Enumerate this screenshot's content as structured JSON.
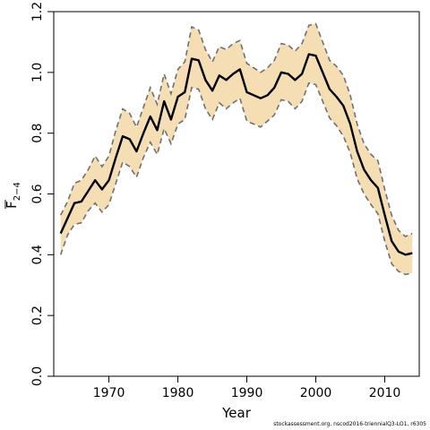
{
  "chart_data": {
    "type": "line",
    "xlabel": "Year",
    "ylabel_base": "F",
    "ylabel_sub": "2−4",
    "xlim": [
      1962,
      2015
    ],
    "ylim": [
      0,
      1.2
    ],
    "xticks": [
      1970,
      1980,
      1990,
      2000,
      2010
    ],
    "yticks": [
      0.0,
      0.2,
      0.4,
      0.6,
      0.8,
      1.0,
      1.2
    ],
    "ytick_labels": [
      "0.0",
      "0.2",
      "0.4",
      "0.6",
      "0.8",
      "1.0",
      "1.2"
    ],
    "band_color": "#f5deb3",
    "line_color": "#000000",
    "bound_color": "#707070",
    "x": [
      1963,
      1964,
      1965,
      1966,
      1967,
      1968,
      1969,
      1970,
      1971,
      1972,
      1973,
      1974,
      1975,
      1976,
      1977,
      1978,
      1979,
      1980,
      1981,
      1982,
      1983,
      1984,
      1985,
      1986,
      1987,
      1988,
      1989,
      1990,
      1991,
      1992,
      1993,
      1994,
      1995,
      1996,
      1997,
      1998,
      1999,
      2000,
      2001,
      2002,
      2003,
      2004,
      2005,
      2006,
      2007,
      2008,
      2009,
      2010,
      2011,
      2012,
      2013,
      2014
    ],
    "series": [
      {
        "role": "estimate",
        "values": [
          0.47,
          0.52,
          0.57,
          0.575,
          0.61,
          0.645,
          0.615,
          0.645,
          0.72,
          0.79,
          0.78,
          0.74,
          0.8,
          0.855,
          0.81,
          0.905,
          0.845,
          0.92,
          0.935,
          1.045,
          1.04,
          0.975,
          0.94,
          0.99,
          0.975,
          0.995,
          1.01,
          0.935,
          0.925,
          0.915,
          0.925,
          0.95,
          1.0,
          0.995,
          0.975,
          0.995,
          1.06,
          1.055,
          1.0,
          0.945,
          0.92,
          0.89,
          0.83,
          0.74,
          0.68,
          0.645,
          0.62,
          0.53,
          0.445,
          0.41,
          0.4,
          0.405
        ]
      },
      {
        "role": "upper",
        "values": [
          0.53,
          0.575,
          0.635,
          0.645,
          0.68,
          0.725,
          0.69,
          0.725,
          0.81,
          0.88,
          0.865,
          0.82,
          0.885,
          0.95,
          0.895,
          0.995,
          0.93,
          1.01,
          1.035,
          1.15,
          1.14,
          1.075,
          1.035,
          1.085,
          1.075,
          1.095,
          1.105,
          1.03,
          1.015,
          1.0,
          1.015,
          1.04,
          1.095,
          1.09,
          1.07,
          1.095,
          1.155,
          1.16,
          1.1,
          1.04,
          1.02,
          0.99,
          0.925,
          0.83,
          0.765,
          0.73,
          0.71,
          0.615,
          0.53,
          0.48,
          0.46,
          0.47
        ]
      },
      {
        "role": "lower",
        "values": [
          0.4,
          0.465,
          0.5,
          0.505,
          0.545,
          0.57,
          0.54,
          0.565,
          0.635,
          0.705,
          0.69,
          0.655,
          0.72,
          0.77,
          0.73,
          0.815,
          0.765,
          0.83,
          0.845,
          0.95,
          0.945,
          0.88,
          0.845,
          0.9,
          0.88,
          0.9,
          0.915,
          0.84,
          0.83,
          0.82,
          0.84,
          0.86,
          0.91,
          0.905,
          0.88,
          0.905,
          0.965,
          0.96,
          0.905,
          0.85,
          0.825,
          0.79,
          0.735,
          0.65,
          0.6,
          0.565,
          0.535,
          0.445,
          0.37,
          0.345,
          0.335,
          0.34
        ]
      }
    ]
  },
  "footer": "stockassessment.org, nscod2016-triennialQ3-LO1, r6305"
}
